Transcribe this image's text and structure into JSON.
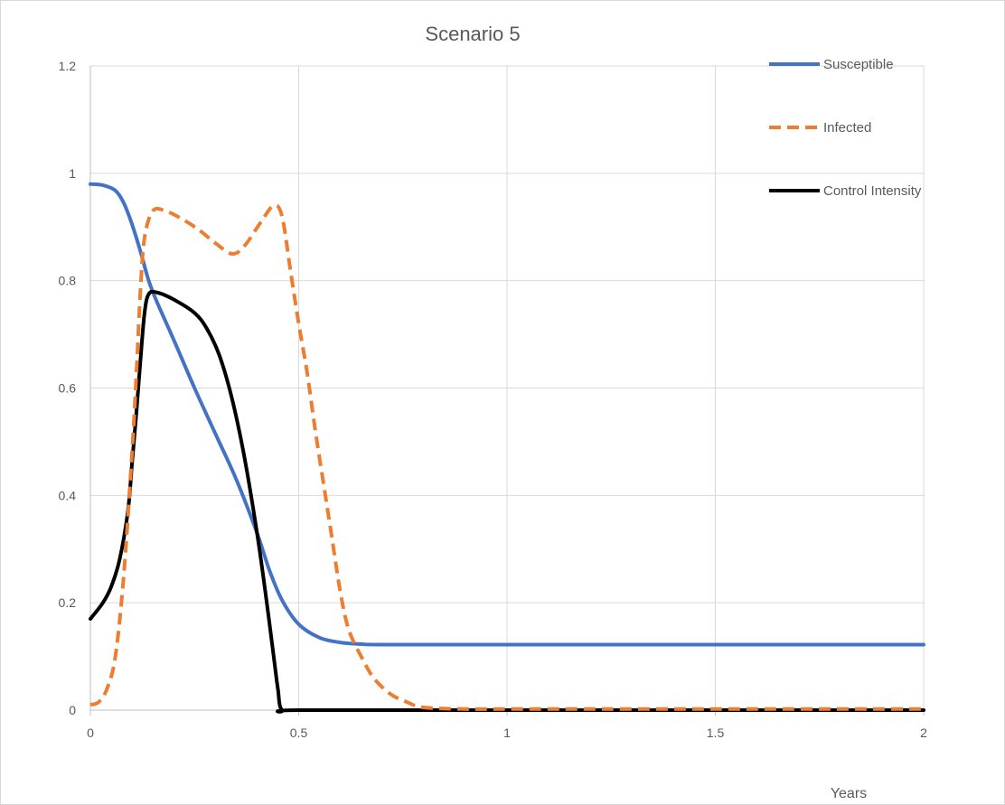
{
  "chart_data": {
    "type": "line",
    "title": "Scenario 5",
    "xlabel": "Years",
    "ylabel": "",
    "xlim": [
      0,
      2
    ],
    "ylim": [
      0,
      1.2
    ],
    "x_ticks": [
      0,
      0.5,
      1,
      1.5,
      2
    ],
    "x_tick_labels": [
      "0",
      "0.5",
      "1",
      "1.5",
      "2"
    ],
    "y_ticks": [
      0,
      0.2,
      0.4,
      0.6,
      0.8,
      1,
      1.2
    ],
    "y_tick_labels": [
      "0",
      "0.2",
      "0.4",
      "0.6",
      "0.8",
      "1",
      "1.2"
    ],
    "grid": true,
    "legend_position": "top-right",
    "series": [
      {
        "name": "Susceptible",
        "color": "#4472C4",
        "dash": "solid",
        "points": [
          [
            0,
            0.98
          ],
          [
            0.03,
            0.978
          ],
          [
            0.06,
            0.968
          ],
          [
            0.08,
            0.945
          ],
          [
            0.1,
            0.905
          ],
          [
            0.12,
            0.855
          ],
          [
            0.14,
            0.8
          ],
          [
            0.16,
            0.76
          ],
          [
            0.2,
            0.69
          ],
          [
            0.25,
            0.6
          ],
          [
            0.3,
            0.515
          ],
          [
            0.35,
            0.43
          ],
          [
            0.4,
            0.33
          ],
          [
            0.43,
            0.26
          ],
          [
            0.46,
            0.205
          ],
          [
            0.5,
            0.16
          ],
          [
            0.55,
            0.135
          ],
          [
            0.6,
            0.126
          ],
          [
            0.65,
            0.123
          ],
          [
            0.7,
            0.122
          ],
          [
            1,
            0.122
          ],
          [
            1.5,
            0.122
          ],
          [
            2,
            0.122
          ]
        ]
      },
      {
        "name": "Infected",
        "color": "#ED7D31",
        "dash": "dashed",
        "points": [
          [
            0,
            0.01
          ],
          [
            0.02,
            0.015
          ],
          [
            0.04,
            0.04
          ],
          [
            0.06,
            0.1
          ],
          [
            0.08,
            0.25
          ],
          [
            0.1,
            0.48
          ],
          [
            0.11,
            0.62
          ],
          [
            0.12,
            0.78
          ],
          [
            0.13,
            0.88
          ],
          [
            0.15,
            0.93
          ],
          [
            0.18,
            0.93
          ],
          [
            0.22,
            0.915
          ],
          [
            0.26,
            0.895
          ],
          [
            0.3,
            0.87
          ],
          [
            0.34,
            0.85
          ],
          [
            0.37,
            0.865
          ],
          [
            0.41,
            0.91
          ],
          [
            0.44,
            0.94
          ],
          [
            0.46,
            0.92
          ],
          [
            0.48,
            0.82
          ],
          [
            0.5,
            0.72
          ],
          [
            0.52,
            0.63
          ],
          [
            0.54,
            0.52
          ],
          [
            0.56,
            0.42
          ],
          [
            0.58,
            0.32
          ],
          [
            0.6,
            0.22
          ],
          [
            0.62,
            0.15
          ],
          [
            0.65,
            0.1
          ],
          [
            0.68,
            0.06
          ],
          [
            0.72,
            0.03
          ],
          [
            0.76,
            0.015
          ],
          [
            0.8,
            0.005
          ],
          [
            0.9,
            0.002
          ],
          [
            1,
            0.002
          ],
          [
            1.5,
            0.002
          ],
          [
            2,
            0.002
          ]
        ]
      },
      {
        "name": "Control Intensity",
        "color": "#000000",
        "dash": "solid",
        "points": [
          [
            0,
            0.17
          ],
          [
            0.03,
            0.2
          ],
          [
            0.05,
            0.23
          ],
          [
            0.07,
            0.28
          ],
          [
            0.09,
            0.37
          ],
          [
            0.1,
            0.46
          ],
          [
            0.11,
            0.55
          ],
          [
            0.12,
            0.65
          ],
          [
            0.13,
            0.74
          ],
          [
            0.14,
            0.775
          ],
          [
            0.16,
            0.778
          ],
          [
            0.2,
            0.765
          ],
          [
            0.25,
            0.74
          ],
          [
            0.28,
            0.71
          ],
          [
            0.31,
            0.66
          ],
          [
            0.34,
            0.58
          ],
          [
            0.37,
            0.47
          ],
          [
            0.4,
            0.33
          ],
          [
            0.42,
            0.22
          ],
          [
            0.44,
            0.1
          ],
          [
            0.45,
            0.04
          ],
          [
            0.46,
            0.0
          ],
          [
            0.5,
            0
          ],
          [
            1,
            0
          ],
          [
            1.5,
            0
          ],
          [
            2,
            0
          ]
        ]
      }
    ]
  }
}
